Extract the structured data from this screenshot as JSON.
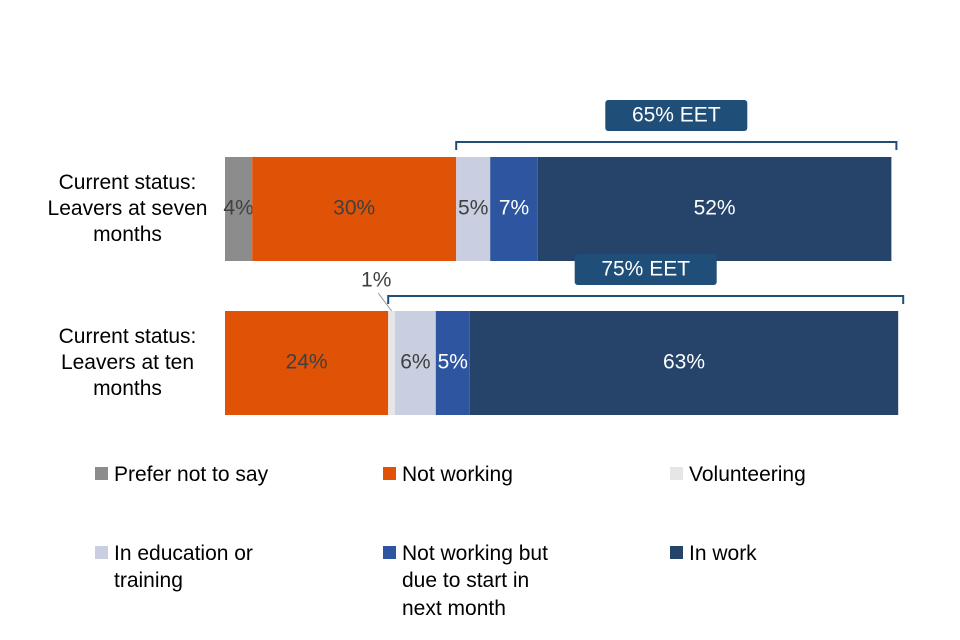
{
  "chart_data": {
    "type": "stacked-bar-horizontal",
    "categories": [
      "Current status: Leavers at seven months",
      "Current status: Leavers at ten months"
    ],
    "series": [
      {
        "name": "Prefer not to say",
        "color": "#8c8c8c",
        "values": [
          4,
          null
        ],
        "value_labels": [
          "4%",
          null
        ]
      },
      {
        "name": "Not working",
        "color": "#e05206",
        "values": [
          30,
          24
        ],
        "value_labels": [
          "30%",
          "24%"
        ]
      },
      {
        "name": "Volunteering",
        "color": "#e6e6e6",
        "values": [
          null,
          1
        ],
        "value_labels": [
          null,
          "1%"
        ]
      },
      {
        "name": "In education or training",
        "color": "#c9cee0",
        "values": [
          5,
          6
        ],
        "value_labels": [
          "5%",
          "6%"
        ]
      },
      {
        "name": "Not working but due to start in next month",
        "color": "#2e56a0",
        "values": [
          7,
          5
        ],
        "value_labels": [
          "7%",
          "5%"
        ]
      },
      {
        "name": "In work",
        "color": "#26436a",
        "values": [
          52,
          63
        ],
        "value_labels": [
          "52%",
          "63%"
        ]
      }
    ],
    "annotations": [
      "65% EET",
      "75% EET"
    ]
  }
}
